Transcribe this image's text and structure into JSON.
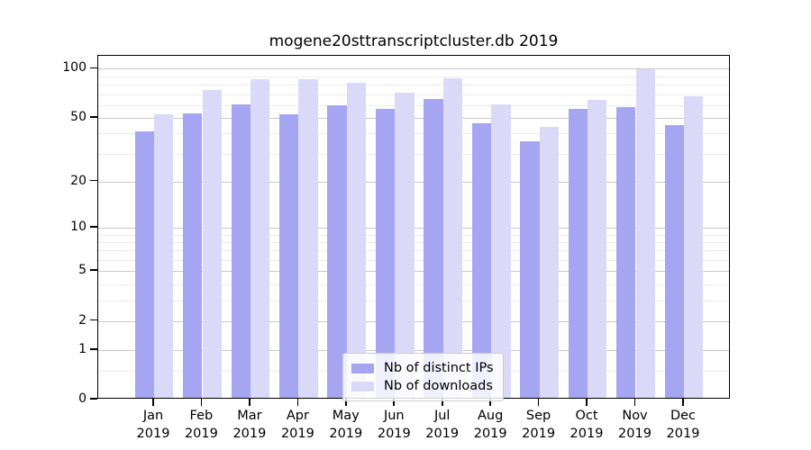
{
  "title": "mogene20sttranscriptcluster.db 2019",
  "colors": {
    "distinct_ips": "#a5a5f2",
    "downloads": "#dadaf8",
    "grid_major": "#c9c9c9",
    "grid_minor": "#ececec",
    "axis": "#000000",
    "legend_border": "#cccccc"
  },
  "legend": {
    "items": [
      {
        "label": "Nb of distinct IPs",
        "color_key": "distinct_ips"
      },
      {
        "label": "Nb of downloads",
        "color_key": "downloads"
      }
    ]
  },
  "chart_data": {
    "type": "bar",
    "title": "mogene20sttranscriptcluster.db 2019",
    "scale": "log1p",
    "categories": [
      "Jan",
      "Feb",
      "Mar",
      "Apr",
      "May",
      "Jun",
      "Jul",
      "Aug",
      "Sep",
      "Oct",
      "Nov",
      "Dec"
    ],
    "category_second_line": "2019",
    "series": [
      {
        "name": "Nb of distinct IPs",
        "color_key": "distinct_ips",
        "values": [
          40,
          52,
          59,
          51,
          58,
          55,
          64,
          45,
          35,
          55,
          57,
          44
        ]
      },
      {
        "name": "Nb of downloads",
        "color_key": "downloads",
        "values": [
          51,
          72,
          84,
          84,
          80,
          70,
          85,
          59,
          43,
          63,
          97,
          66
        ]
      }
    ],
    "xlabel": "",
    "ylabel": "",
    "ylim": [
      0,
      120
    ],
    "y_ticks": [
      100,
      50,
      20,
      10,
      5,
      2,
      1,
      0
    ],
    "minor_gridlines": [
      0.5,
      3,
      4,
      6,
      7,
      8,
      9,
      30,
      40,
      60,
      70,
      80,
      90
    ],
    "grid": true,
    "legend_position": "lower center"
  }
}
